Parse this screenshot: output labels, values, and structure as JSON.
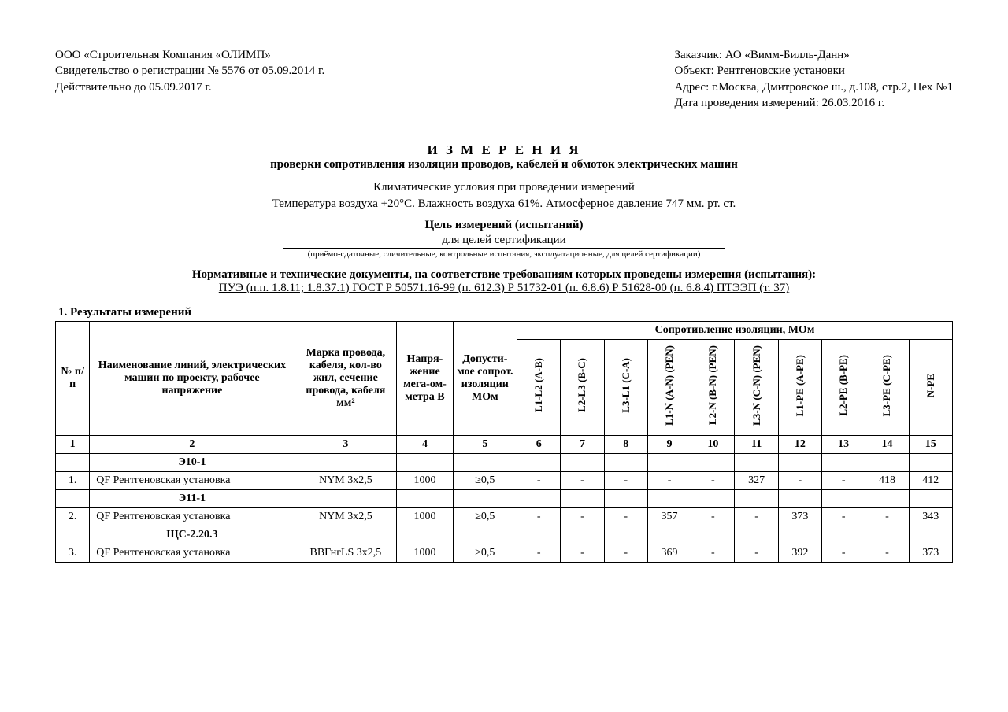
{
  "header": {
    "left": {
      "company": "ООО «Строительная Компания «ОЛИМП»",
      "certificate": "Свидетельство о регистрации № 5576 от 05.09.2014 г.",
      "valid": "Действительно до 05.09.2017 г."
    },
    "right": {
      "customer": "Заказчик: АО «Вимм-Билль-Данн»",
      "object": "Объект: Рентгеновские установки",
      "address": "Адрес: г.Москва, Дмитровское ш., д.108, стр.2, Цех №1",
      "date": "Дата проведения измерений: 26.03.2016 г."
    }
  },
  "title": {
    "main": "И З М Е Р Е Н И Я",
    "sub": "проверки сопротивления изоляции проводов, кабелей и обмоток электрических машин"
  },
  "conditions": {
    "line1": "Климатические условия при проведении измерений",
    "temp_label": "Температура воздуха ",
    "temp_val": "+20",
    "temp_unit": "°C.  Влажность воздуха ",
    "hum_val": "61",
    "hum_unit": "%.  Атмосферное давление ",
    "press_val": "747",
    "press_unit": " мм. рт. ст."
  },
  "purpose": {
    "title": "Цель измерений (испытаний)",
    "value": "для целей сертификации",
    "note": "(приёмо-сдаточные, сличительные, контрольные испытания, эксплуатационные, для целей сертификации)"
  },
  "norms": {
    "title": "Нормативные и технические документы, на соответствие требованиям которых проведены измерения (испытания):",
    "list": "ПУЭ (п.п. 1.8.11; 1.8.37.1) ГОСТ Р 50571.16-99 (п. 612.3) Р 51732-01 (п. 6.8.6) Р 51628-00 (п. 6.8.4) ПТЭЭП (т. 37)"
  },
  "section1": "1. Результаты измерений",
  "table": {
    "columns": {
      "num": "№ п/п",
      "name": "Наименование линий, электрических машин по проекту, рабочее напряжение",
      "mark": "Марка провода, кабеля, кол-во жил, сечение провода, кабеля мм²",
      "voltage": "Напря-жение мега-ом-метра В",
      "allowed": "Допусти-мое сопрот. изоляции МОм",
      "res_group": "Сопротивление изоляции, МОм",
      "c6": "L1-L2 (A-B)",
      "c7": "L2-L3 (B-C)",
      "c8": "L3-L1 (C-A)",
      "c9": "L1-N (A-N) (PEN)",
      "c10": "L2-N (B-N) (PEN)",
      "c11": "L3-N (C-N) (PEN)",
      "c12": "L1-PE (A-PE)",
      "c13": "L2-PE (B-PE)",
      "c14": "L3-PE (C-PE)",
      "c15": "N-PE"
    },
    "numrow": [
      "1",
      "2",
      "3",
      "4",
      "5",
      "6",
      "7",
      "8",
      "9",
      "10",
      "11",
      "12",
      "13",
      "14",
      "15"
    ],
    "groups": {
      "g1": "Э10-1",
      "g2": "Э11-1",
      "g3": "ЩС-2.20.3"
    },
    "rows": {
      "r1": {
        "n": "1.",
        "name": "QF Рентгеновская установка",
        "mark": "NYM 3x2,5",
        "volt": "1000",
        "allow": "≥0,5",
        "v": [
          "-",
          "-",
          "-",
          "-",
          "-",
          "327",
          "-",
          "-",
          "418",
          "412"
        ]
      },
      "r2": {
        "n": "2.",
        "name": "QF Рентгеновская установка",
        "mark": "NYM 3x2,5",
        "volt": "1000",
        "allow": "≥0,5",
        "v": [
          "-",
          "-",
          "-",
          "357",
          "-",
          "-",
          "373",
          "-",
          "-",
          "343"
        ]
      },
      "r3": {
        "n": "3.",
        "name": "QF Рентгеновская установка",
        "mark": "ВВГнгLS 3x2,5",
        "volt": "1000",
        "allow": "≥0,5",
        "v": [
          "-",
          "-",
          "-",
          "369",
          "-",
          "-",
          "392",
          "-",
          "-",
          "373"
        ]
      }
    }
  }
}
